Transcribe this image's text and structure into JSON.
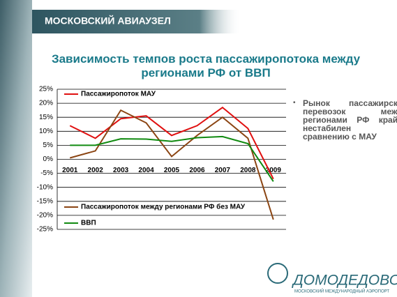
{
  "header": "МОСКОВСКИЙ АВИАУЗЕЛ",
  "chart_data": {
    "type": "line",
    "title": "Зависимость темпов роста пассажиропотока между регионами РФ от ВВП",
    "categories": [
      "2001",
      "2002",
      "2003",
      "2004",
      "2005",
      "2006",
      "2007",
      "2008",
      "2009"
    ],
    "series": [
      {
        "name": "Пассажиропоток МАУ",
        "color": "#e01010",
        "values": [
          12,
          7.5,
          14.5,
          15.5,
          8.5,
          12,
          18.5,
          11,
          -7
        ]
      },
      {
        "name": "Пассажиропоток между регионами РФ без МАУ",
        "color": "#8b4513",
        "values": [
          0.5,
          3,
          17.5,
          13,
          1,
          8.5,
          15,
          7.5,
          -21.5
        ]
      },
      {
        "name": "ВВП",
        "color": "#108a10",
        "values": [
          5,
          5,
          7.3,
          7.2,
          6.4,
          7.7,
          8.1,
          5.6,
          -7.9
        ]
      }
    ],
    "ylim": [
      -25,
      25
    ],
    "yticks": [
      {
        "value": -25,
        "label": "-25%"
      },
      {
        "value": -20,
        "label": "-20%"
      },
      {
        "value": -15,
        "label": "-15%"
      },
      {
        "value": -10,
        "label": "-10%"
      },
      {
        "value": -5,
        "label": "-5%"
      },
      {
        "value": 0,
        "label": "0%"
      },
      {
        "value": 5,
        "label": "5%"
      },
      {
        "value": 10,
        "label": "10%"
      },
      {
        "value": 15,
        "label": "15%"
      },
      {
        "value": 20,
        "label": "20%"
      },
      {
        "value": 25,
        "label": "25%"
      }
    ],
    "grid": true
  },
  "bullet": "Рынок пассажирских перевозок между регионами РФ крайне нестабилен по сравнению с МАУ",
  "logo": {
    "name": "ДОМОДЕДОВО",
    "tagline": "МОСКОВСКИЙ МЕЖДУНАРОДНЫЙ АЭРОПОРТ"
  }
}
